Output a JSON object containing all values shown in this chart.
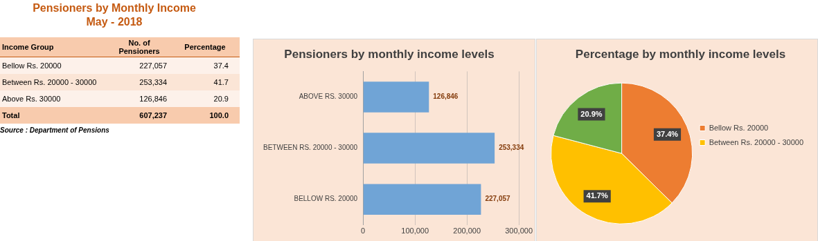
{
  "chart_data": [
    {
      "type": "other",
      "title": "Pensioners by Monthly Income",
      "subtitle": "May - 2018",
      "annotations": [
        "Income Group",
        "No. of Pensioners",
        "Percentage",
        "Bellow Rs. 20000",
        "227,057",
        "37.4",
        "Between Rs. 20000 - 30000",
        "253,334",
        "41.7",
        "Above Rs. 30000",
        "126,846",
        "20.9",
        "Total",
        "607,237",
        "100.0",
        "Source : Department of Pensions"
      ]
    },
    {
      "type": "bar",
      "orientation": "horizontal",
      "title": "Pensioners by monthly income levels",
      "categories": [
        "ABOVE RS. 30000",
        "BETWEEN RS. 20000 - 30000",
        "BELLOW RS. 20000"
      ],
      "values": [
        126846,
        253334,
        227057
      ],
      "value_labels": [
        "126,846",
        "253,334",
        "227,057"
      ],
      "color": "#70a4d6",
      "xlim": [
        0,
        300000
      ],
      "xticks": [
        0,
        {
          "value": 100000,
          "label": "100,000"
        },
        {
          "value": 200000,
          "label": "200,000"
        },
        {
          "value": 300000,
          "label": "300,000"
        }
      ],
      "grid": "x"
    },
    {
      "type": "pie",
      "title": "Percentage by monthly income levels",
      "categories": [
        "Bellow Rs. 20000",
        "Between Rs. 20000 - 30000",
        null
      ],
      "values": [
        37.4,
        41.7,
        20.9
      ],
      "value_labels": [
        "37.4%",
        "41.7%",
        "20.9%"
      ],
      "colors": [
        "#ed7d31",
        "#ffc000",
        "#70ad47"
      ],
      "legend": "right"
    }
  ]
}
